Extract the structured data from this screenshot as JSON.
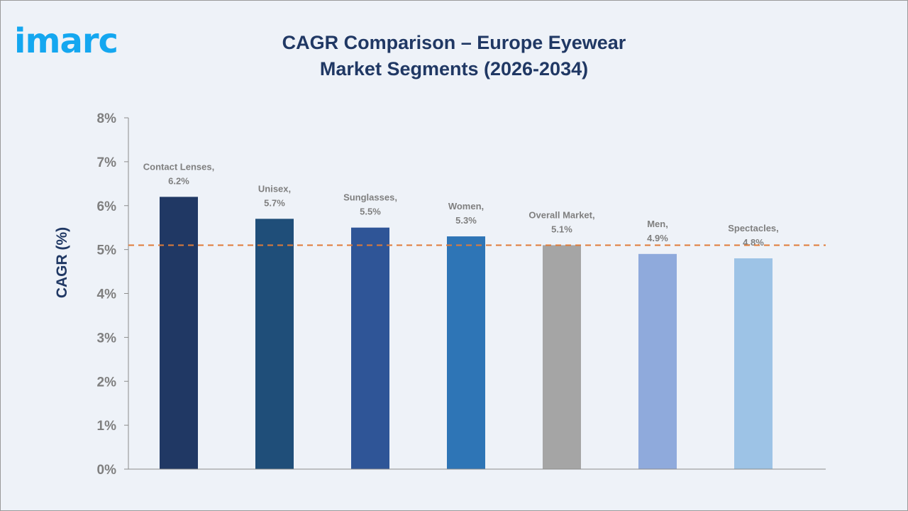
{
  "logo": {
    "text": "imarc",
    "color": "#14a7f0"
  },
  "chart_data": {
    "type": "bar",
    "title": "CAGR Comparison – Europe Eyewear Market Segments (2026-2034)",
    "title_lines": [
      "CAGR Comparison – Europe Eyewear",
      "Market Segments (2026-2034)"
    ],
    "ylabel": "CAGR (%)",
    "xlabel": "",
    "ylim": [
      0,
      8
    ],
    "yticks": [
      "0%",
      "1%",
      "2%",
      "3%",
      "4%",
      "5%",
      "6%",
      "7%",
      "8%"
    ],
    "grid": false,
    "categories": [
      "Contact Lenses",
      "Unisex",
      "Sunglasses",
      "Women",
      "Overall Market",
      "Men",
      "Spectacles"
    ],
    "values": [
      6.2,
      5.7,
      5.5,
      5.3,
      5.1,
      4.9,
      4.8
    ],
    "data_labels": [
      [
        "Contact Lenses,",
        "6.2%"
      ],
      [
        "Unisex,",
        "5.7%"
      ],
      [
        "Sunglasses,",
        "5.5%"
      ],
      [
        "Women,",
        "5.3%"
      ],
      [
        "Overall Market,",
        "5.1%"
      ],
      [
        "Men,",
        "4.9%"
      ],
      [
        "Spectacles,",
        "4.8%"
      ]
    ],
    "colors": [
      "#203864",
      "#1f4e79",
      "#2f5597",
      "#2e75b6",
      "#a5a5a5",
      "#8faadc",
      "#9dc3e6"
    ],
    "reference_line": {
      "value": 5.1,
      "style": "dashed",
      "color": "#e07b39"
    }
  }
}
